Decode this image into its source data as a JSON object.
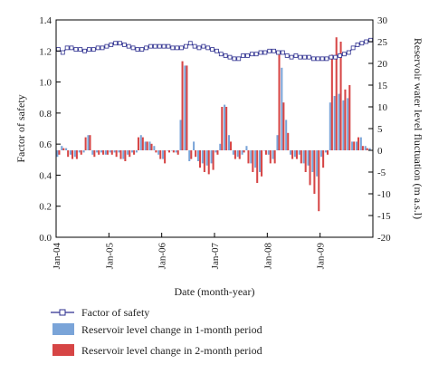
{
  "chart_data": {
    "type": "line+bar",
    "x_axis": {
      "label": "Date (month-year)",
      "ticks": [
        "Jan-04",
        "Jan-05",
        "Jan-06",
        "Jan-07",
        "Jan-08",
        "Jan-09"
      ],
      "range": [
        "2004-01",
        "2009-12"
      ]
    },
    "y_left": {
      "label": "Factor of safety",
      "range": [
        0.0,
        1.4
      ],
      "ticks": [
        "0.0",
        "0.2",
        "0.4",
        "0.6",
        "0.8",
        "1.0",
        "1.2",
        "1.4"
      ],
      "tick_values": [
        0.0,
        0.2,
        0.4,
        0.6,
        0.8,
        1.0,
        1.2,
        1.4
      ]
    },
    "y_right": {
      "label": "Reservoir water level fluctuation (m a.s.l)",
      "range": [
        -20,
        30
      ],
      "ticks": [
        "-20",
        "-15",
        "-10",
        "-5",
        "0",
        "5",
        "10",
        "15",
        "20",
        "25",
        "30"
      ],
      "tick_values": [
        -20,
        -15,
        -10,
        -5,
        0,
        5,
        10,
        15,
        20,
        25,
        30
      ]
    },
    "months": [
      "2004-01",
      "2004-02",
      "2004-03",
      "2004-04",
      "2004-05",
      "2004-06",
      "2004-07",
      "2004-08",
      "2004-09",
      "2004-10",
      "2004-11",
      "2004-12",
      "2005-01",
      "2005-02",
      "2005-03",
      "2005-04",
      "2005-05",
      "2005-06",
      "2005-07",
      "2005-08",
      "2005-09",
      "2005-10",
      "2005-11",
      "2005-12",
      "2006-01",
      "2006-02",
      "2006-03",
      "2006-04",
      "2006-05",
      "2006-06",
      "2006-07",
      "2006-08",
      "2006-09",
      "2006-10",
      "2006-11",
      "2006-12",
      "2007-01",
      "2007-02",
      "2007-03",
      "2007-04",
      "2007-05",
      "2007-06",
      "2007-07",
      "2007-08",
      "2007-09",
      "2007-10",
      "2007-11",
      "2007-12",
      "2008-01",
      "2008-02",
      "2008-03",
      "2008-04",
      "2008-05",
      "2008-06",
      "2008-07",
      "2008-08",
      "2008-09",
      "2008-10",
      "2008-11",
      "2008-12",
      "2009-01",
      "2009-02",
      "2009-03",
      "2009-04",
      "2009-05",
      "2009-06",
      "2009-07",
      "2009-08",
      "2009-09",
      "2009-10",
      "2009-11",
      "2009-12"
    ],
    "series": [
      {
        "name": "Factor of safety",
        "type": "line",
        "axis": "left",
        "color": "#2d2f8f",
        "values": [
          1.21,
          1.19,
          1.22,
          1.22,
          1.21,
          1.21,
          1.2,
          1.21,
          1.21,
          1.22,
          1.22,
          1.23,
          1.24,
          1.25,
          1.25,
          1.24,
          1.23,
          1.22,
          1.21,
          1.21,
          1.22,
          1.23,
          1.23,
          1.23,
          1.23,
          1.23,
          1.22,
          1.22,
          1.22,
          1.23,
          1.25,
          1.23,
          1.22,
          1.23,
          1.22,
          1.21,
          1.2,
          1.18,
          1.17,
          1.16,
          1.15,
          1.15,
          1.17,
          1.17,
          1.18,
          1.18,
          1.19,
          1.19,
          1.2,
          1.2,
          1.19,
          1.19,
          1.17,
          1.16,
          1.17,
          1.16,
          1.16,
          1.16,
          1.15,
          1.15,
          1.15,
          1.15,
          1.16,
          1.16,
          1.17,
          1.18,
          1.19,
          1.22,
          1.24,
          1.25,
          1.26,
          1.27
        ]
      },
      {
        "name": "Reservoir level change in 1-month period",
        "type": "bar",
        "axis": "right",
        "color": "#7aa4d8",
        "values": [
          -1.5,
          1,
          0.5,
          -1,
          -1.5,
          -0.5,
          -0.5,
          3.5,
          -1,
          -0.5,
          -0.5,
          -1,
          -0.5,
          -0.5,
          -0.5,
          -2,
          -1,
          -0.5,
          -0.5,
          3.5,
          2,
          2,
          1,
          -1,
          -2,
          0,
          0,
          -0.5,
          7,
          19.5,
          -2.5,
          2,
          -2.5,
          -3,
          -3.5,
          -3,
          -0.5,
          1.5,
          10.5,
          3.5,
          -1,
          -1.5,
          -1,
          1,
          -3,
          -4,
          -5,
          0,
          -1,
          -2,
          3.5,
          19,
          7,
          -1,
          -1.5,
          -1,
          -3,
          -3.5,
          -5,
          -6,
          -1.5,
          -0.5,
          11,
          12.5,
          13,
          11.5,
          12,
          2,
          2,
          3,
          1,
          0.5
        ]
      },
      {
        "name": "Reservoir level change in 2-month period",
        "type": "bar",
        "axis": "right",
        "color": "#d64545",
        "values": [
          -1,
          0.5,
          -1.5,
          -2,
          -2,
          -1,
          3,
          3.5,
          -1.5,
          -1,
          -1,
          -1,
          -1,
          -1.5,
          -2,
          -2.5,
          -1.5,
          -1,
          3,
          3,
          2,
          1.5,
          -0.5,
          -2,
          -3,
          -0.5,
          -0.5,
          -1,
          20.5,
          19.5,
          -2,
          -1.5,
          -4,
          -5,
          -5.5,
          -4.5,
          -1,
          10,
          10,
          2,
          -2,
          -2,
          -0.5,
          -3,
          -5,
          -7.5,
          -6,
          -1,
          -3,
          -3,
          22,
          11,
          4,
          -2,
          -2,
          -3,
          -5,
          -8,
          -10,
          -14,
          -4,
          -1,
          22,
          26,
          25,
          14,
          15,
          2,
          3,
          1,
          0.5,
          0
        ]
      }
    ],
    "legend": {
      "position": "bottom",
      "items": [
        {
          "label": "Factor of safety",
          "kind": "line-marker",
          "color": "#2d2f8f"
        },
        {
          "label": "Reservoir level change in 1-month period",
          "kind": "box",
          "color": "#7aa4d8"
        },
        {
          "label": "Reservoir level change in 2-month period",
          "kind": "box",
          "color": "#d64545"
        }
      ]
    },
    "grid": false
  }
}
